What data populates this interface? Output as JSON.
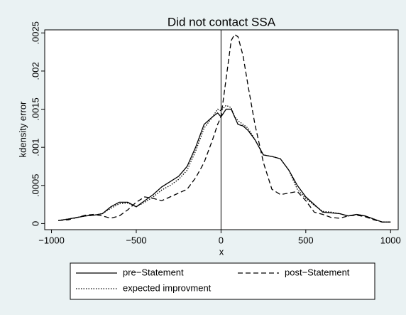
{
  "chart_data": {
    "type": "line",
    "title": "Did not contact SSA",
    "x_label": "x",
    "y_label": "kdensity error",
    "x": [
      -960,
      -900,
      -850,
      -800,
      -750,
      -700,
      -650,
      -600,
      -550,
      -500,
      -450,
      -400,
      -350,
      -300,
      -250,
      -200,
      -150,
      -100,
      -50,
      -20,
      0,
      30,
      60,
      80,
      100,
      130,
      160,
      200,
      250,
      300,
      350,
      400,
      450,
      500,
      550,
      600,
      650,
      700,
      750,
      800,
      850,
      900,
      950,
      1000
    ],
    "series": [
      {
        "name": "pre−Statement",
        "color": "#000000",
        "dash": "solid",
        "values": [
          4e-05,
          6e-05,
          8e-05,
          0.0001,
          0.00011,
          0.00013,
          0.00022,
          0.00028,
          0.00028,
          0.00022,
          0.0003,
          0.00038,
          0.00048,
          0.00055,
          0.00062,
          0.00075,
          0.001,
          0.0013,
          0.0014,
          0.00145,
          0.0014,
          0.0015,
          0.0015,
          0.0014,
          0.0013,
          0.00128,
          0.00122,
          0.0011,
          0.0009,
          0.00088,
          0.00085,
          0.0007,
          0.0005,
          0.00035,
          0.00025,
          0.00015,
          0.00014,
          0.00013,
          0.0001,
          0.00012,
          0.0001,
          6e-05,
          2e-05,
          2e-05
        ]
      },
      {
        "name": "post−Statement",
        "color": "#000000",
        "dash": "dashed",
        "values": [
          4e-05,
          5e-05,
          8e-05,
          0.00011,
          0.00012,
          0.0001,
          7e-05,
          0.0001,
          0.00018,
          0.00028,
          0.00035,
          0.00033,
          0.0003,
          0.00035,
          0.0004,
          0.00045,
          0.0006,
          0.0008,
          0.0011,
          0.0013,
          0.0014,
          0.0019,
          0.0024,
          0.00248,
          0.00245,
          0.0022,
          0.0018,
          0.0013,
          0.0008,
          0.00045,
          0.00038,
          0.0004,
          0.00042,
          0.0003,
          0.00015,
          0.00012,
          8e-05,
          7e-05,
          0.0001,
          0.00011,
          9e-05,
          5e-05,
          2e-05,
          2e-05
        ]
      },
      {
        "name": "expected improvment",
        "color": "#000000",
        "dash": "dotted",
        "values": [
          4e-05,
          6e-05,
          8e-05,
          0.0001,
          0.00011,
          0.00013,
          0.0002,
          0.00026,
          0.00027,
          0.00022,
          0.00028,
          0.00035,
          0.00044,
          0.0005,
          0.00058,
          0.0007,
          0.00095,
          0.00125,
          0.0014,
          0.0015,
          0.00148,
          0.00155,
          0.00152,
          0.0014,
          0.00135,
          0.0013,
          0.00125,
          0.0011,
          0.0009,
          0.00088,
          0.00085,
          0.0007,
          0.00045,
          0.00033,
          0.00024,
          0.00016,
          0.00015,
          0.00013,
          0.0001,
          0.00012,
          0.0001,
          6e-05,
          2e-05,
          2e-05
        ]
      }
    ],
    "xlim": [
      -1040,
      1045
    ],
    "xticks": [
      {
        "value": -1000,
        "label": "−1000"
      },
      {
        "value": -500,
        "label": "−500"
      },
      0,
      500,
      1000
    ],
    "ylim": [
      -8e-05,
      0.00254
    ],
    "yticks": [
      0,
      {
        "value": 0.0005,
        "label": ".0005"
      },
      {
        "value": 0.001,
        "label": ".001"
      },
      {
        "value": 0.0015,
        "label": ".0015"
      },
      {
        "value": 0.002,
        "label": ".002"
      },
      {
        "value": 0.0025,
        "label": ".0025"
      }
    ],
    "vline": 0,
    "legend": "bottom"
  }
}
